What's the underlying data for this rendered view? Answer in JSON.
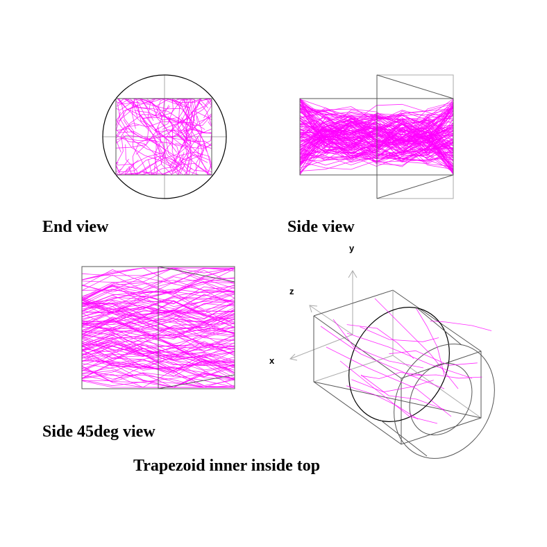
{
  "labels": {
    "end_view": "End view",
    "side_view": "Side view",
    "side45_view": "Side 45deg view",
    "main_title": "Trapezoid inner inside top"
  },
  "axes": {
    "x": "x",
    "y": "y",
    "z": "z"
  },
  "colors": {
    "tracks": "#ff00ff",
    "outline": "#000000",
    "guide": "#aaaaaa"
  }
}
